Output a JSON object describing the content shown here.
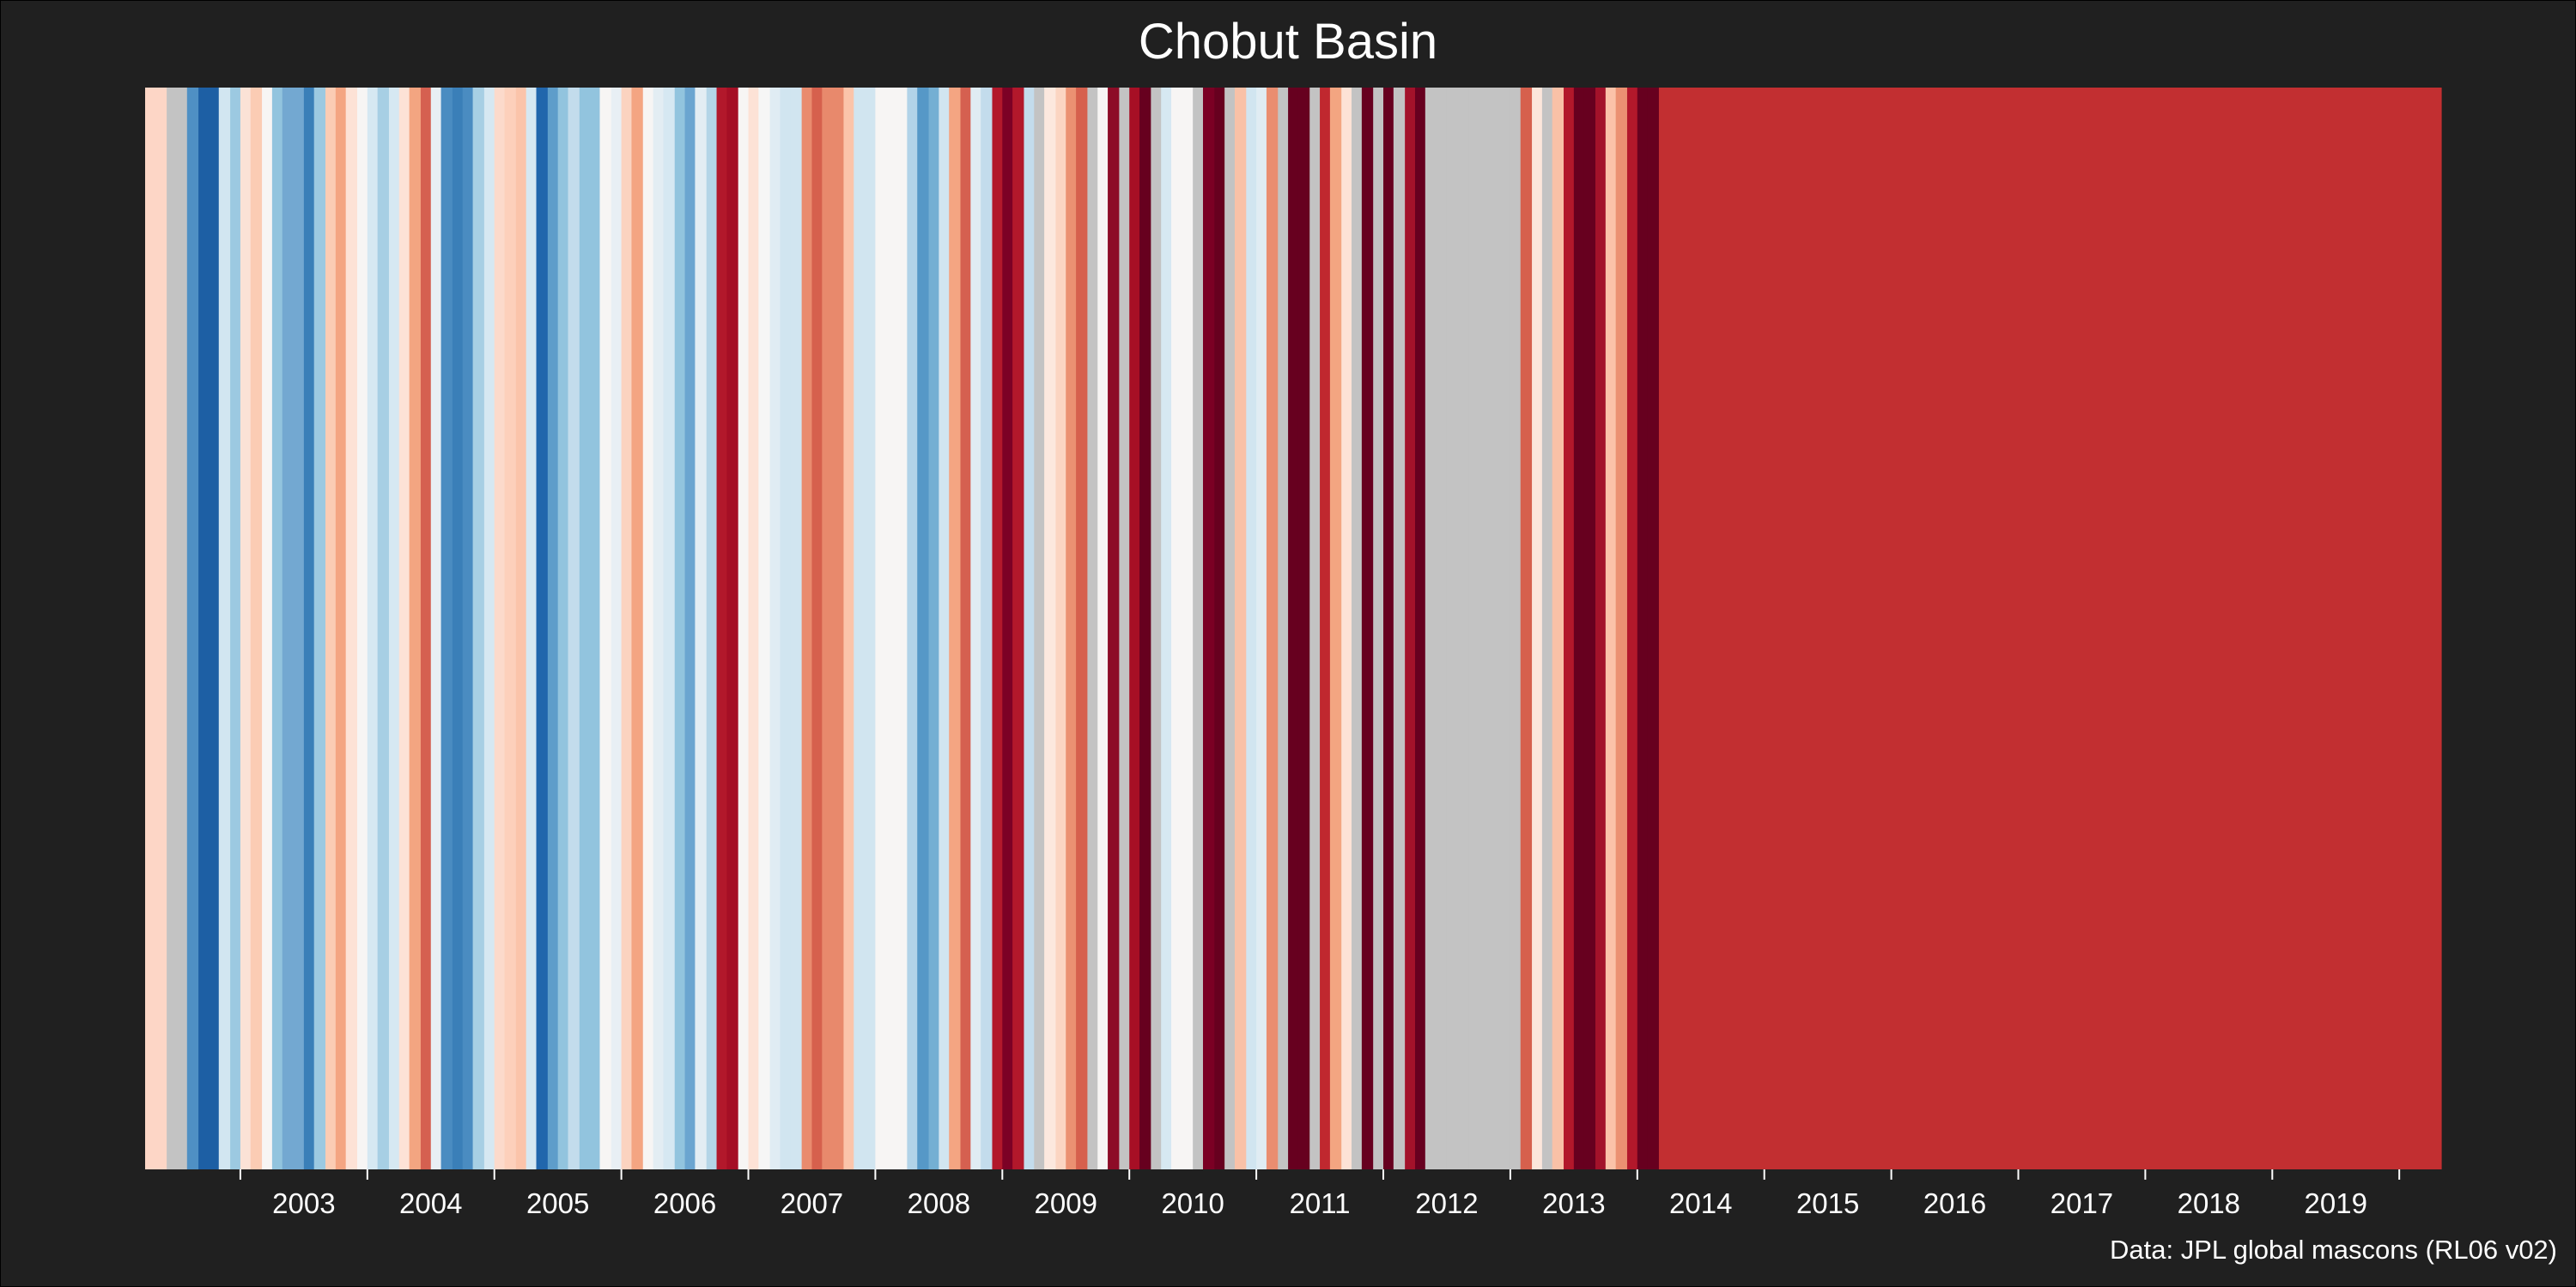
{
  "title": "Chobut Basin",
  "caption": "Data: JPL global mascons (RL06 v02)",
  "colors": {
    "background": "#202020",
    "missing": "#c3c3c3",
    "text": "#ffffff"
  },
  "chart_data": {
    "type": "heatmap",
    "subtype": "warming-stripes",
    "title": "Chobut Basin",
    "xlabel": "",
    "ylabel": "",
    "x_start": 2002.25,
    "x_end": 2020.33,
    "x_tick_labels": [
      "2003",
      "2004",
      "2005",
      "2006",
      "2007",
      "2008",
      "2009",
      "2010",
      "2011",
      "2012",
      "2013",
      "2014",
      "2015",
      "2016",
      "2017",
      "2018",
      "2019"
    ],
    "grid": false,
    "legend": "none",
    "stripes": [
      [
        "2002.25",
        "#fdd6c6"
      ],
      [
        "2002.42",
        "#c3c3c3"
      ],
      [
        "2002.58",
        "#4f90c4"
      ],
      [
        "2002.67",
        "#1d5fa4"
      ],
      [
        "2002.83",
        "#d2e6f1"
      ],
      [
        "2002.92",
        "#9cc9e1"
      ],
      [
        "2003.00",
        "#fbe2d6"
      ],
      [
        "2003.08",
        "#fbccb4"
      ],
      [
        "2003.17",
        "#f7f5f4"
      ],
      [
        "2003.25",
        "#92c4de"
      ],
      [
        "2003.33",
        "#73a8d1"
      ],
      [
        "2003.50",
        "#3a7fb8"
      ],
      [
        "2003.58",
        "#9cc9e1"
      ],
      [
        "2003.67",
        "#fbccb4"
      ],
      [
        "2003.75",
        "#f4a582"
      ],
      [
        "2003.83",
        "#fde2d6"
      ],
      [
        "2003.92",
        "#f7f5f4"
      ],
      [
        "2004.00",
        "#d6e8f2"
      ],
      [
        "2004.08",
        "#a7cfe4"
      ],
      [
        "2004.17",
        "#d6e8f2"
      ],
      [
        "2004.25",
        "#fde2d6"
      ],
      [
        "2004.33",
        "#f3a581"
      ],
      [
        "2004.42",
        "#d56050"
      ],
      [
        "2004.50",
        "#e8eff4"
      ],
      [
        "2004.58",
        "#4a8cc1"
      ],
      [
        "2004.67",
        "#3a7fb8"
      ],
      [
        "2004.75",
        "#4a8cc1"
      ],
      [
        "2004.83",
        "#a7cfe4"
      ],
      [
        "2004.92",
        "#d6e8f2"
      ],
      [
        "2005.00",
        "#fcdacb"
      ],
      [
        "2005.08",
        "#fdd0bb"
      ],
      [
        "2005.17",
        "#fbc4aa"
      ],
      [
        "2005.25",
        "#d6e8f2"
      ],
      [
        "2005.33",
        "#2166ac"
      ],
      [
        "2005.42",
        "#5e9dca"
      ],
      [
        "2005.50",
        "#92c4de"
      ],
      [
        "2005.58",
        "#c3dcec"
      ],
      [
        "2005.67",
        "#92c4de"
      ],
      [
        "2005.83",
        "#f7f5f4"
      ],
      [
        "2005.92",
        "#e8eff4"
      ],
      [
        "2006.00",
        "#fbd3c0"
      ],
      [
        "2006.08",
        "#f4a582"
      ],
      [
        "2006.17",
        "#f7f5f4"
      ],
      [
        "2006.25",
        "#e3edf3"
      ],
      [
        "2006.33",
        "#d6e8f2"
      ],
      [
        "2006.42",
        "#92c4de"
      ],
      [
        "2006.50",
        "#6ba5d0"
      ],
      [
        "2006.58",
        "#e3edf3"
      ],
      [
        "2006.67",
        "#b4d5e7"
      ],
      [
        "2006.75",
        "#b2182b"
      ],
      [
        "2006.83",
        "#a50f25"
      ],
      [
        "2006.92",
        "#f7f5f4"
      ],
      [
        "2007.00",
        "#fde2d6"
      ],
      [
        "2007.08",
        "#f6f6f6"
      ],
      [
        "2007.17",
        "#e0ecf3"
      ],
      [
        "2007.25",
        "#d1e5f0"
      ],
      [
        "2007.33",
        "#d1e5f0"
      ],
      [
        "2007.42",
        "#e98b6e"
      ],
      [
        "2007.50",
        "#d6604d"
      ],
      [
        "2007.58",
        "#e8896c"
      ],
      [
        "2007.75",
        "#fbc4aa"
      ],
      [
        "2007.83",
        "#d1e5f0"
      ],
      [
        "2008.00",
        "#f7f5f4"
      ],
      [
        "2008.08",
        "#f7f5f4"
      ],
      [
        "2008.25",
        "#b2d3e8"
      ],
      [
        "2008.33",
        "#5698c7"
      ],
      [
        "2008.42",
        "#74afd3"
      ],
      [
        "2008.50",
        "#d1e5f0"
      ],
      [
        "2008.58",
        "#f4a582"
      ],
      [
        "2008.67",
        "#d56050"
      ],
      [
        "2008.75",
        "#e0ecf3"
      ],
      [
        "2008.83",
        "#c3dcec"
      ],
      [
        "2008.92",
        "#b2182b"
      ],
      [
        "2009.00",
        "#7c0125"
      ],
      [
        "2009.08",
        "#b2182b"
      ],
      [
        "2009.17",
        "#c3dcec"
      ],
      [
        "2009.25",
        "#c3c3c3"
      ],
      [
        "2009.33",
        "#fce8de"
      ],
      [
        "2009.42",
        "#fbd5c2"
      ],
      [
        "2009.50",
        "#eb9172"
      ],
      [
        "2009.58",
        "#d6604d"
      ],
      [
        "2009.67",
        "#c3c3c3"
      ],
      [
        "2009.75",
        "#f7f5f4"
      ],
      [
        "2009.83",
        "#8d0c27"
      ],
      [
        "2009.92",
        "#c3c3c3"
      ],
      [
        "2010.00",
        "#a70f25"
      ],
      [
        "2010.08",
        "#67001f"
      ],
      [
        "2010.17",
        "#c3c3c3"
      ],
      [
        "2010.25",
        "#d6e8f2"
      ],
      [
        "2010.33",
        "#f7f5f4"
      ],
      [
        "2010.42",
        "#f7f5f4"
      ],
      [
        "2010.50",
        "#c3c3c3"
      ],
      [
        "2010.58",
        "#7b0024"
      ],
      [
        "2010.67",
        "#67001f"
      ],
      [
        "2010.75",
        "#c3c3c3"
      ],
      [
        "2010.83",
        "#f9c1a7"
      ],
      [
        "2010.92",
        "#d1e5f0"
      ],
      [
        "2011.00",
        "#e0ecf3"
      ],
      [
        "2011.08",
        "#ea8d70"
      ],
      [
        "2011.17",
        "#c3c3c3"
      ],
      [
        "2011.25",
        "#67001f"
      ],
      [
        "2011.33",
        "#67001f"
      ],
      [
        "2011.42",
        "#c3c3c3"
      ],
      [
        "2011.50",
        "#c0282f"
      ],
      [
        "2011.58",
        "#f3a581"
      ],
      [
        "2011.67",
        "#fde2d6"
      ],
      [
        "2011.75",
        "#c3c3c3"
      ],
      [
        "2011.83",
        "#67001f"
      ],
      [
        "2011.92",
        "#c3c3c3"
      ],
      [
        "2012.00",
        "#67001f"
      ],
      [
        "2012.08",
        "#c3c3c3"
      ],
      [
        "2012.17",
        "#a3122a"
      ],
      [
        "2012.25",
        "#67001f"
      ],
      [
        "2012.33",
        "#c3c3c3"
      ],
      [
        "2012.42",
        "#c3c3c3"
      ],
      [
        "2012.50",
        "#c3c3c3"
      ],
      [
        "2012.58",
        "#c3c3c3"
      ],
      [
        "2012.67",
        "#c3c3c3"
      ],
      [
        "2012.75",
        "#c3c3c3"
      ],
      [
        "2012.83",
        "#c3c3c3"
      ],
      [
        "2012.92",
        "#c3c3c3"
      ],
      [
        "2013.00",
        "#c3c3c3"
      ],
      [
        "2013.08",
        "#d6604d"
      ],
      [
        "2013.17",
        "#fce6db"
      ],
      [
        "2013.25",
        "#c3c3c3"
      ],
      [
        "2013.33",
        "#f9c1a7"
      ],
      [
        "2013.42",
        "#b2182b"
      ],
      [
        "2013.50",
        "#67001f"
      ],
      [
        "2013.58",
        "#67001f"
      ],
      [
        "2013.67",
        "#a3122a"
      ],
      [
        "2013.75",
        "#fbc2a8"
      ],
      [
        "2013.83",
        "#eb9172"
      ],
      [
        "2013.92",
        "#b2182b"
      ],
      [
        "2014.00",
        "#67001f"
      ],
      [
        "2014.08",
        "#67001f"
      ],
      [
        "2014.17",
        "#c22f31"
      ]
    ]
  }
}
